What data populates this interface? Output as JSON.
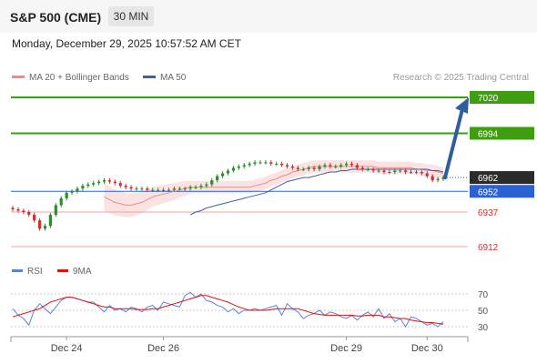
{
  "header": {
    "title": "S&P 500 (CME)",
    "timeframe": "30 MIN"
  },
  "datetime": "Monday, December 29, 2025 10:57:52 AM CET",
  "legend": {
    "ma20_label": "MA 20 + Bollinger Bands",
    "ma50_label": "MA 50",
    "credit": "Research © 2025 Trading Central",
    "rsi_label": "RSI",
    "ma9_label": "9MA"
  },
  "colors": {
    "up": "#2e8b2e",
    "down": "#d32f2f",
    "support": "#2a62d4",
    "resistance": "#3f9e0f",
    "ma20": "#f08a84",
    "ma50": "#3f5fa8",
    "rsi": "#5b82d9",
    "rsi_ma": "#e01010",
    "arrow": "#2f5e9e"
  },
  "chart_data": [
    {
      "type": "candlestick",
      "x_labels": [
        "Dec 24",
        "Dec 26",
        "Dec 29",
        "Dec 30"
      ],
      "ylim": [
        6905,
        7025
      ],
      "levels": [
        {
          "value": 7020,
          "label": "7020",
          "kind": "resistance"
        },
        {
          "value": 6994,
          "label": "6994",
          "kind": "resistance"
        },
        {
          "value": 6962,
          "label": "6962",
          "kind": "last"
        },
        {
          "value": 6952,
          "label": "6952",
          "kind": "pivot"
        },
        {
          "value": 6937,
          "label": "6937",
          "kind": "support"
        },
        {
          "value": 6912,
          "label": "6912",
          "kind": "support"
        }
      ],
      "close": [
        6939,
        6938,
        6937,
        6935,
        6931,
        6925,
        6927,
        6935,
        6942,
        6947,
        6951,
        6952,
        6954,
        6956,
        6957,
        6958,
        6959,
        6960,
        6959,
        6958,
        6956,
        6955,
        6954,
        6954,
        6954,
        6953,
        6953,
        6953,
        6953,
        6953,
        6954,
        6954,
        6954,
        6955,
        6955,
        6956,
        6957,
        6960,
        6963,
        6965,
        6967,
        6969,
        6970,
        6971,
        6972,
        6973,
        6973,
        6973,
        6972,
        6972,
        6971,
        6970,
        6969,
        6968,
        6968,
        6969,
        6968,
        6970,
        6971,
        6970,
        6970,
        6971,
        6972,
        6971,
        6969,
        6968,
        6968,
        6967,
        6967,
        6966,
        6966,
        6967,
        6967,
        6966,
        6966,
        6966,
        6965,
        6963,
        6960,
        6961,
        6962
      ],
      "ma20": [
        6948,
        6946,
        6944,
        6943,
        6942,
        6942,
        6943,
        6944,
        6946,
        6948,
        6949,
        6950,
        6951,
        6952,
        6953,
        6954,
        6955,
        6955,
        6955,
        6955,
        6955,
        6955,
        6955,
        6955,
        6955,
        6955,
        6955,
        6955,
        6956,
        6957,
        6958,
        6960,
        6961,
        6963,
        6964,
        6966,
        6967,
        6968,
        6969,
        6970,
        6970,
        6970,
        6970,
        6970,
        6970,
        6970,
        6970,
        6970,
        6970,
        6970,
        6970,
        6969,
        6969,
        6969,
        6969,
        6969,
        6969,
        6969,
        6968,
        6968,
        6967,
        6967,
        6966,
        6965
      ],
      "ma50": [
        6935,
        6937,
        6938,
        6940,
        6941,
        6942,
        6943,
        6944,
        6945,
        6946,
        6947,
        6948,
        6949,
        6950,
        6951,
        6953,
        6955,
        6957,
        6959,
        6960,
        6961,
        6962,
        6962,
        6963,
        6964,
        6965,
        6966,
        6966,
        6967,
        6967,
        6968,
        6968,
        6968,
        6968,
        6968,
        6968,
        6968,
        6968,
        6968,
        6968,
        6968,
        6968,
        6968,
        6968,
        6968,
        6967,
        6967,
        6966
      ]
    },
    {
      "type": "line",
      "ylim": [
        20,
        80
      ],
      "gridlines": [
        70,
        50,
        30
      ],
      "rsi": [
        52,
        44,
        40,
        32,
        50,
        58,
        52,
        46,
        54,
        62,
        66,
        66,
        64,
        62,
        60,
        60,
        54,
        48,
        56,
        50,
        52,
        48,
        54,
        52,
        48,
        54,
        56,
        50,
        60,
        58,
        56,
        54,
        68,
        72,
        66,
        70,
        62,
        60,
        56,
        54,
        48,
        52,
        46,
        50,
        50,
        52,
        50,
        52,
        54,
        56,
        44,
        58,
        52,
        48,
        40,
        44,
        46,
        50,
        44,
        48,
        46,
        42,
        40,
        44,
        38,
        44,
        48,
        42,
        52,
        40,
        46,
        36,
        40,
        30,
        42,
        40,
        36,
        32,
        34,
        30,
        36
      ],
      "ma9": [
        42,
        44,
        46,
        48,
        50,
        52,
        56,
        60,
        62,
        64,
        66,
        66,
        64,
        62,
        60,
        58,
        56,
        54,
        54,
        52,
        52,
        52,
        52,
        51,
        51,
        51,
        52,
        52,
        54,
        56,
        58,
        60,
        62,
        64,
        66,
        68,
        68,
        66,
        64,
        62,
        60,
        57,
        54,
        52,
        50,
        50,
        50,
        50,
        51,
        52,
        52,
        52,
        52,
        52,
        50,
        48,
        46,
        45,
        44,
        44,
        44,
        44,
        44,
        44,
        43,
        43,
        44,
        44,
        44,
        42,
        42,
        41,
        40,
        40,
        38,
        37,
        36,
        35,
        35,
        34,
        33
      ]
    }
  ]
}
